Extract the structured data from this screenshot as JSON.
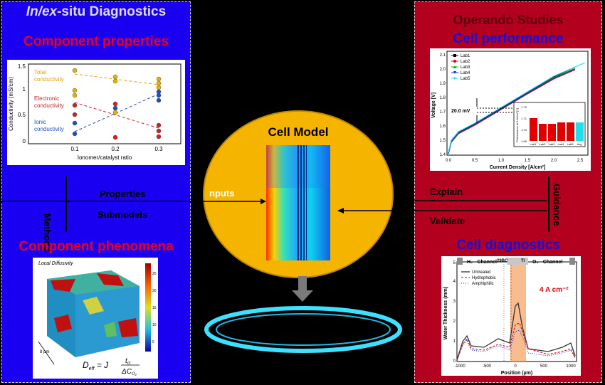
{
  "left": {
    "title_italic": "In/ex",
    "title_rest": "-situ Diagnostics",
    "component_properties": "Component properties",
    "component_phenomena": "Component phenomena",
    "methods": "Methods",
    "properties": "Properties",
    "submodels": "Submodels",
    "chart": {
      "ylabel": "Conductivity (mS/cm)",
      "xlabel": "Ionomer/catalyst ratio",
      "xticks": [
        "0.1",
        "0.2",
        "0.3"
      ],
      "yticks": [
        "0",
        "0.5",
        "1",
        "1.5"
      ],
      "total_label_1": "Total",
      "total_label_2": "conductivity",
      "electronic_label_1": "Electronic",
      "electronic_label_2": "conductivity",
      "ionic_label_1": "Ionic",
      "ionic_label_2": "conductivity"
    },
    "micro": {
      "title": "Local Diffusivity",
      "scale": "8 µm",
      "formula_lhs": "D",
      "formula_sub": "eff",
      "formula_mid": "= J",
      "formula_num": "t",
      "formula_num_sub": "cl",
      "formula_den": "ΔC",
      "formula_den_sub": "O₂",
      "colorbar_ticks": [
        "25",
        "20",
        "15",
        "10",
        "5"
      ]
    }
  },
  "center": {
    "cell_model": "Cell Model",
    "inputs": "nputs"
  },
  "right": {
    "title": "Operando Studies",
    "cell_performance": "Cell performance",
    "cell_diagnostics": "Cell diagnostics",
    "guidance": "Guidance",
    "explain": "Explain",
    "validate": "Validate",
    "perf_chart": {
      "ylabel": "Voltage [V]",
      "xlabel": "Current Density [A/cm²]",
      "xticks": [
        "0.0",
        "0.5",
        "1.0",
        "1.5",
        "2.0",
        "2.5"
      ],
      "yticks": [
        "1.4",
        "1.5",
        "1.6",
        "1.7",
        "1.8",
        "1.9",
        "2.0",
        "2.1"
      ],
      "legend": [
        "Lab1",
        "Lab2",
        "Lab3",
        "Lab4",
        "Lab5"
      ],
      "legend_colors": [
        "#000000",
        "#e00000",
        "#00b000",
        "#1030e0",
        "#20e0f0"
      ],
      "annotation": "20.0 mV",
      "inset_ylabel": "Performance at 1 A/cm² [V]",
      "inset_xticks": [
        "Lab1",
        "Lab2",
        "Lab3",
        "Lab4",
        "Lab5",
        "Avg"
      ],
      "inset_yticks": [
        "1.72",
        "1.71",
        "1.70",
        "1.69"
      ]
    },
    "diag_chart": {
      "ylabel": "Water Thickness (mm)",
      "xlabel": "Position (µm)",
      "xticks": [
        "-1000",
        "-500",
        "0",
        "500",
        "1000"
      ],
      "yticks": [
        "0",
        "1",
        "2",
        "3",
        "4",
        "5"
      ],
      "h2_channel": "H₂ - Channel",
      "o2_channel": "O₂ - Channel",
      "label_29bc": "29BC",
      "label_ti": "Ti",
      "current": "4 A cm⁻²",
      "legend": [
        "Untreated",
        "Hydrophobic",
        "Amphiphilic"
      ]
    }
  }
}
